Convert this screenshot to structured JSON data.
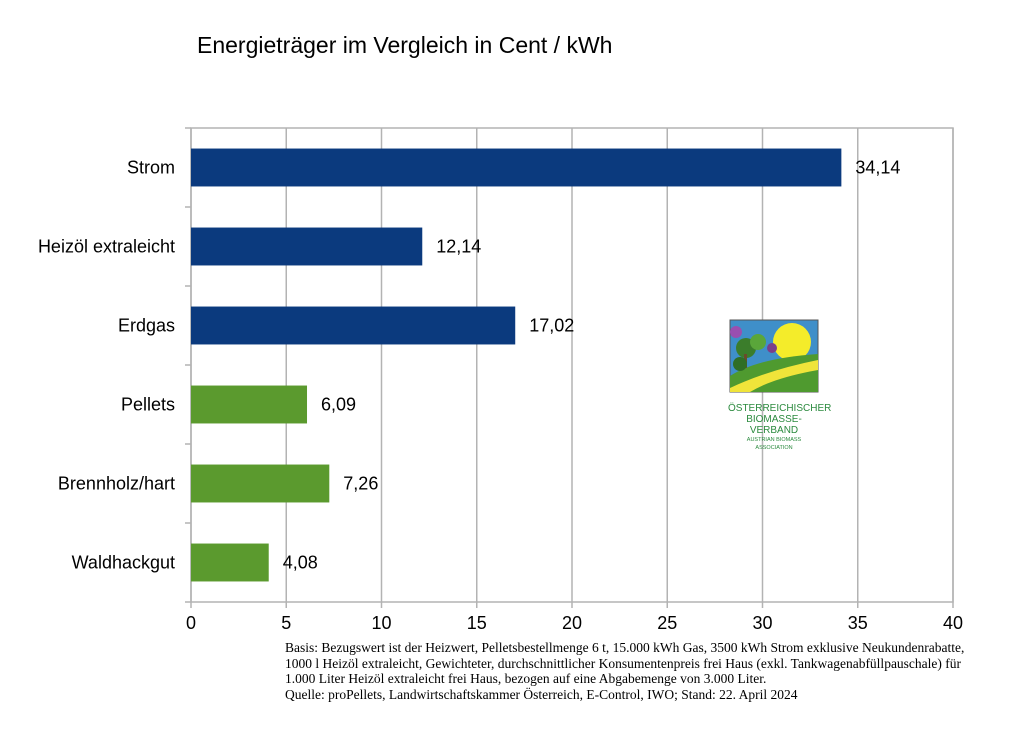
{
  "chart_data": {
    "type": "bar",
    "orientation": "horizontal",
    "title": "Energieträger im Vergleich in Cent / kWh",
    "categories": [
      "Strom",
      "Heizöl extraleicht",
      "Erdgas",
      "Pellets",
      "Brennholz/hart",
      "Waldhackgut"
    ],
    "values": [
      34.14,
      12.14,
      17.02,
      6.09,
      7.26,
      4.08
    ],
    "value_labels": [
      "34,14",
      "12,14",
      "17,02",
      "6,09",
      "7,26",
      "4,08"
    ],
    "bar_colors": [
      "#0b3a7e",
      "#0b3a7e",
      "#0b3a7e",
      "#5b9a2e",
      "#5b9a2e",
      "#5b9a2e"
    ],
    "xlim": [
      0,
      40
    ],
    "xticks": [
      0,
      5,
      10,
      15,
      20,
      25,
      30,
      35,
      40
    ],
    "grid": "vertical",
    "xlabel": "",
    "ylabel": ""
  },
  "logo": {
    "line1": "ÖSTERREICHISCHER",
    "line2": "BIOMASSE-VERBAND",
    "line3": "AUSTRIAN BIOMASS ASSOCIATION"
  },
  "footnote": {
    "basis": "Basis: Bezugswert ist der Heizwert, Pelletsbestellmenge 6 t, 15.000 kWh Gas, 3500 kWh Strom exklusive Neukundenrabatte, 1000 l Heizöl extraleicht, Gewichteter, durchschnittlicher Konsumentenpreis frei Haus (exkl. Tankwagenabfüllpauschale) für 1.000 Liter Heizöl extraleicht frei Haus, bezogen auf eine Abgabemenge von 3.000 Liter.",
    "source": "Quelle: proPellets, Landwirtschaftskammer Österreich, E-Control, IWO; Stand: 22. April 2024"
  }
}
